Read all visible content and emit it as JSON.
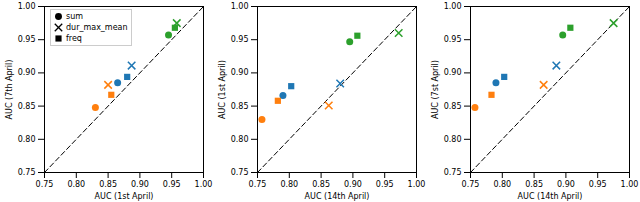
{
  "chart_data": [
    {
      "type": "scatter",
      "xlabel": "AUC (1st April)",
      "ylabel": "AUC (7th April)",
      "xlim": [
        0.75,
        1.0
      ],
      "ylim": [
        0.75,
        1.0
      ],
      "xticks": [
        0.75,
        {
          "value": 0.8,
          "label": "0.80"
        },
        0.85,
        {
          "value": 0.9,
          "label": "0.90"
        },
        0.95,
        {
          "value": 1.0,
          "label": "1.00"
        }
      ],
      "yticks": [
        0.75,
        {
          "value": 0.8,
          "label": "0.80"
        },
        0.85,
        {
          "value": 0.9,
          "label": "0.90"
        },
        0.95,
        {
          "value": 1.0,
          "label": "1.00"
        }
      ],
      "legend": "upper left",
      "series": [
        {
          "name": "sum",
          "marker": "circle",
          "x": [
            0.83,
            0.865,
            0.945
          ],
          "y": [
            0.848,
            0.885,
            0.957
          ],
          "colors": [
            "#ff7f0e",
            "#1f77b4",
            "#2ca02c"
          ]
        },
        {
          "name": "dur_max_mean",
          "marker": "x",
          "x": [
            0.85,
            0.887,
            0.958
          ],
          "y": [
            0.882,
            0.911,
            0.975
          ],
          "colors": [
            "#ff7f0e",
            "#1f77b4",
            "#2ca02c"
          ]
        },
        {
          "name": "freq",
          "marker": "square",
          "x": [
            0.855,
            0.88,
            0.955
          ],
          "y": [
            0.867,
            0.894,
            0.968
          ],
          "colors": [
            "#ff7f0e",
            "#1f77b4",
            "#2ca02c"
          ]
        }
      ]
    },
    {
      "type": "scatter",
      "xlabel": "AUC (14th April)",
      "ylabel": "AUC (1st April)",
      "xlim": [
        0.75,
        1.0
      ],
      "ylim": [
        0.75,
        1.0
      ],
      "xticks": [
        0.75,
        {
          "value": 0.8,
          "label": "0.80"
        },
        0.85,
        {
          "value": 0.9,
          "label": "0.90"
        },
        0.95,
        {
          "value": 1.0,
          "label": "1.00"
        }
      ],
      "yticks": [
        0.75,
        {
          "value": 0.8,
          "label": "0.80"
        },
        0.85,
        {
          "value": 0.9,
          "label": "0.90"
        },
        0.95,
        {
          "value": 1.0,
          "label": "1.00"
        }
      ],
      "series": [
        {
          "name": "sum",
          "marker": "circle",
          "x": [
            0.757,
            0.79,
            0.895
          ],
          "y": [
            0.83,
            0.866,
            0.947
          ],
          "colors": [
            "#ff7f0e",
            "#1f77b4",
            "#2ca02c"
          ]
        },
        {
          "name": "dur_max_mean",
          "marker": "x",
          "x": [
            0.862,
            0.88,
            0.972
          ],
          "y": [
            0.851,
            0.884,
            0.96
          ],
          "colors": [
            "#ff7f0e",
            "#1f77b4",
            "#2ca02c"
          ]
        },
        {
          "name": "freq",
          "marker": "square",
          "x": [
            0.782,
            0.803,
            0.907
          ],
          "y": [
            0.858,
            0.88,
            0.956
          ],
          "colors": [
            "#ff7f0e",
            "#1f77b4",
            "#2ca02c"
          ]
        }
      ]
    },
    {
      "type": "scatter",
      "xlabel": "AUC (14th April)",
      "ylabel": "AUC (7st April)",
      "xlim": [
        0.75,
        1.0
      ],
      "ylim": [
        0.75,
        1.0
      ],
      "xticks": [
        0.75,
        {
          "value": 0.8,
          "label": "0.80"
        },
        0.85,
        {
          "value": 0.9,
          "label": "0.90"
        },
        0.95,
        {
          "value": 1.0,
          "label": "1.00"
        }
      ],
      "yticks": [
        0.75,
        {
          "value": 0.8,
          "label": "0.80"
        },
        0.85,
        {
          "value": 0.9,
          "label": "0.90"
        },
        0.95,
        {
          "value": 1.0,
          "label": "1.00"
        }
      ],
      "series": [
        {
          "name": "sum",
          "marker": "circle",
          "x": [
            0.757,
            0.79,
            0.895
          ],
          "y": [
            0.848,
            0.885,
            0.957
          ],
          "colors": [
            "#ff7f0e",
            "#1f77b4",
            "#2ca02c"
          ]
        },
        {
          "name": "dur_max_mean",
          "marker": "x",
          "x": [
            0.865,
            0.885,
            0.975
          ],
          "y": [
            0.882,
            0.911,
            0.975
          ],
          "colors": [
            "#ff7f0e",
            "#1f77b4",
            "#2ca02c"
          ]
        },
        {
          "name": "freq",
          "marker": "square",
          "x": [
            0.783,
            0.803,
            0.907
          ],
          "y": [
            0.867,
            0.894,
            0.968
          ],
          "colors": [
            "#ff7f0e",
            "#1f77b4",
            "#2ca02c"
          ]
        }
      ]
    }
  ]
}
